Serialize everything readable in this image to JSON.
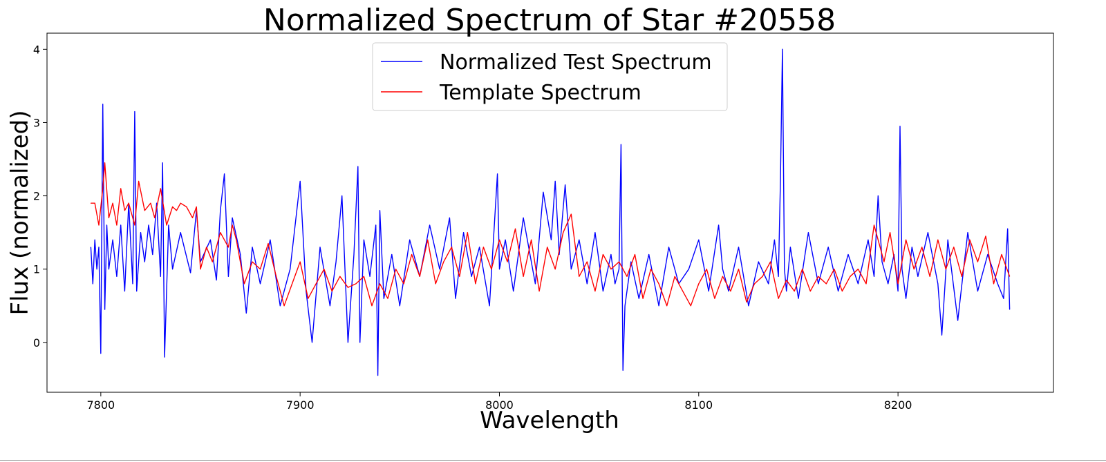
{
  "chart_data": {
    "type": "line",
    "title": "Normalized Spectrum of Star #20558",
    "xlabel": "Wavelength",
    "ylabel": "Flux (normalized)",
    "xlim": [
      7773,
      8278
    ],
    "ylim": [
      -0.68,
      4.22
    ],
    "xticks": [
      "7800",
      "7900",
      "8000",
      "8100",
      "8200"
    ],
    "yticks": [
      "0",
      "1",
      "2",
      "3",
      "4"
    ],
    "grid": false,
    "legend_position": "upper-center",
    "series": [
      {
        "name": "Normalized Test Spectrum",
        "color": "#0000ff",
        "x": [
          7795,
          7796,
          7797,
          7798,
          7799,
          7800,
          7801,
          7802,
          7803,
          7804,
          7806,
          7808,
          7810,
          7812,
          7814,
          7816,
          7817,
          7818,
          7820,
          7822,
          7824,
          7826,
          7828,
          7830,
          7831,
          7832,
          7834,
          7836,
          7840,
          7845,
          7848,
          7850,
          7855,
          7858,
          7860,
          7862,
          7864,
          7866,
          7870,
          7873,
          7876,
          7880,
          7885,
          7890,
          7895,
          7900,
          7903,
          7906,
          7910,
          7915,
          7918,
          7921,
          7924,
          7927,
          7929,
          7930,
          7932,
          7935,
          7938,
          7939,
          7940,
          7942,
          7946,
          7950,
          7955,
          7960,
          7965,
          7970,
          7975,
          7978,
          7982,
          7986,
          7990,
          7995,
          7999,
          8000,
          8003,
          8007,
          8012,
          8018,
          8022,
          8026,
          8028,
          8030,
          8033,
          8036,
          8040,
          8044,
          8048,
          8052,
          8056,
          8058,
          8060,
          8061,
          8062,
          8063,
          8066,
          8070,
          8075,
          8080,
          8085,
          8090,
          8095,
          8100,
          8105,
          8110,
          8112,
          8115,
          8120,
          8125,
          8130,
          8135,
          8138,
          8140,
          8141,
          8142,
          8143,
          8144,
          8146,
          8150,
          8155,
          8160,
          8165,
          8170,
          8175,
          8180,
          8185,
          8188,
          8190,
          8192,
          8195,
          8198,
          8200,
          8201,
          8202,
          8204,
          8207,
          8210,
          8215,
          8220,
          8222,
          8225,
          8230,
          8235,
          8240,
          8245,
          8250,
          8253,
          8255,
          8256
        ],
        "values": [
          1.3,
          0.8,
          1.4,
          1.0,
          1.3,
          -0.15,
          3.25,
          0.45,
          1.6,
          1.0,
          1.4,
          0.9,
          1.6,
          0.7,
          1.9,
          0.8,
          3.15,
          0.7,
          1.5,
          1.1,
          1.6,
          1.2,
          1.9,
          0.9,
          2.45,
          -0.2,
          1.6,
          1.0,
          1.5,
          0.95,
          1.8,
          1.1,
          1.4,
          0.85,
          1.8,
          2.3,
          0.9,
          1.7,
          1.2,
          0.4,
          1.3,
          0.8,
          1.4,
          0.5,
          1.0,
          2.2,
          0.7,
          0.0,
          1.3,
          0.5,
          1.1,
          2.0,
          0.0,
          1.2,
          2.4,
          0.0,
          1.4,
          0.9,
          1.6,
          -0.45,
          1.8,
          0.6,
          1.2,
          0.5,
          1.4,
          0.9,
          1.6,
          1.0,
          1.7,
          0.6,
          1.5,
          0.9,
          1.3,
          0.5,
          2.3,
          1.0,
          1.4,
          0.7,
          1.7,
          0.8,
          2.05,
          1.4,
          2.2,
          1.2,
          2.15,
          1.0,
          1.4,
          0.8,
          1.5,
          0.7,
          1.2,
          0.8,
          1.0,
          2.7,
          -0.38,
          0.5,
          1.1,
          0.6,
          1.2,
          0.5,
          1.3,
          0.8,
          1.0,
          1.4,
          0.7,
          1.6,
          1.0,
          0.7,
          1.3,
          0.5,
          1.1,
          0.8,
          1.4,
          0.9,
          2.2,
          4.0,
          1.0,
          0.7,
          1.3,
          0.6,
          1.5,
          0.8,
          1.3,
          0.7,
          1.2,
          0.8,
          1.4,
          0.9,
          2.0,
          1.1,
          0.8,
          1.2,
          0.7,
          2.95,
          1.0,
          0.6,
          1.3,
          0.9,
          1.5,
          0.8,
          0.1,
          1.4,
          0.3,
          1.5,
          0.7,
          1.2,
          0.8,
          0.6,
          1.55,
          0.45
        ]
      },
      {
        "name": "Template Spectrum",
        "color": "#ff0000",
        "x": [
          7795,
          7797,
          7799,
          7801,
          7802,
          7804,
          7806,
          7808,
          7810,
          7812,
          7814,
          7817,
          7819,
          7822,
          7825,
          7827,
          7830,
          7833,
          7836,
          7838,
          7840,
          7843,
          7846,
          7848,
          7850,
          7853,
          7856,
          7860,
          7864,
          7866,
          7868,
          7872,
          7876,
          7880,
          7884,
          7888,
          7892,
          7896,
          7900,
          7904,
          7908,
          7912,
          7916,
          7920,
          7924,
          7928,
          7932,
          7936,
          7940,
          7944,
          7948,
          7952,
          7956,
          7960,
          7964,
          7968,
          7972,
          7976,
          7980,
          7984,
          7988,
          7992,
          7996,
          8000,
          8004,
          8008,
          8012,
          8016,
          8020,
          8024,
          8028,
          8032,
          8036,
          8040,
          8044,
          8048,
          8052,
          8056,
          8060,
          8064,
          8068,
          8072,
          8076,
          8080,
          8084,
          8088,
          8092,
          8096,
          8100,
          8104,
          8108,
          8112,
          8116,
          8120,
          8124,
          8128,
          8132,
          8136,
          8140,
          8144,
          8148,
          8152,
          8156,
          8160,
          8164,
          8168,
          8172,
          8176,
          8180,
          8184,
          8188,
          8190,
          8193,
          8196,
          8200,
          8204,
          8208,
          8212,
          8216,
          8220,
          8224,
          8228,
          8232,
          8236,
          8240,
          8244,
          8248,
          8252,
          8256
        ],
        "values": [
          1.9,
          1.9,
          1.6,
          2.1,
          2.45,
          1.7,
          1.9,
          1.6,
          2.1,
          1.8,
          1.9,
          1.6,
          2.2,
          1.8,
          1.9,
          1.7,
          2.1,
          1.6,
          1.85,
          1.8,
          1.9,
          1.85,
          1.7,
          1.85,
          1.0,
          1.3,
          1.1,
          1.5,
          1.3,
          1.6,
          1.4,
          0.8,
          1.1,
          1.0,
          1.35,
          0.9,
          0.5,
          0.8,
          1.1,
          0.6,
          0.8,
          1.0,
          0.7,
          0.9,
          0.75,
          0.8,
          0.9,
          0.5,
          0.8,
          0.6,
          1.0,
          0.8,
          1.2,
          0.9,
          1.4,
          0.8,
          1.1,
          1.3,
          0.9,
          1.5,
          0.8,
          1.3,
          1.0,
          1.4,
          1.1,
          1.55,
          0.9,
          1.4,
          0.7,
          1.3,
          1.0,
          1.5,
          1.75,
          0.9,
          1.1,
          0.7,
          1.2,
          1.0,
          1.1,
          0.9,
          1.2,
          0.6,
          1.0,
          0.8,
          0.5,
          0.9,
          0.7,
          0.5,
          0.8,
          1.0,
          0.6,
          0.9,
          0.7,
          1.0,
          0.55,
          0.8,
          0.9,
          1.1,
          0.6,
          0.85,
          0.7,
          1.0,
          0.7,
          0.9,
          0.8,
          1.0,
          0.7,
          0.9,
          1.0,
          0.8,
          1.6,
          1.4,
          1.1,
          1.5,
          0.8,
          1.4,
          1.0,
          1.3,
          0.9,
          1.4,
          1.0,
          1.3,
          0.9,
          1.4,
          1.1,
          1.45,
          0.8,
          1.2,
          0.9
        ]
      }
    ]
  }
}
